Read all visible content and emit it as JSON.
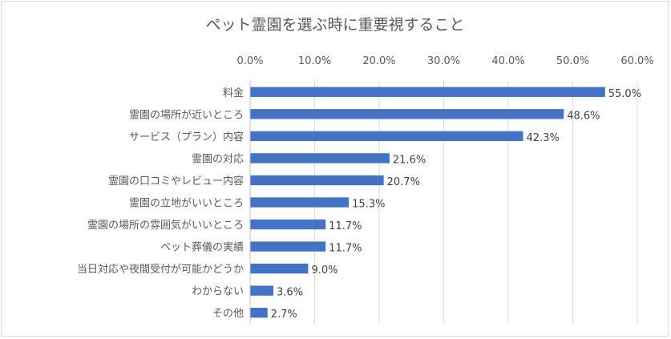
{
  "chart_data": {
    "type": "bar",
    "orientation": "horizontal",
    "title": "ペット霊園を選ぶ時に重要視すること",
    "categories": [
      "料金",
      "霊園の場所が近いところ",
      "サービス（プラン）内容",
      "霊園の対応",
      "霊園の口コミやレビュー内容",
      "霊園の立地がいいところ",
      "霊園の場所の雰囲気がいいところ",
      "ペット葬儀の実績",
      "当日対応や夜間受付が可能かどうか",
      "わからない",
      "その他"
    ],
    "values": [
      55.0,
      48.6,
      42.3,
      21.6,
      20.7,
      15.3,
      11.7,
      11.7,
      9.0,
      3.6,
      2.7
    ],
    "value_labels": [
      "55.0%",
      "48.6%",
      "42.3%",
      "21.6%",
      "20.7%",
      "15.3%",
      "11.7%",
      "11.7%",
      "9.0%",
      "3.6%",
      "2.7%"
    ],
    "xlim": [
      0,
      60
    ],
    "xticks": [
      "0.0%",
      "10.0%",
      "20.0%",
      "30.0%",
      "40.0%",
      "50.0%",
      "60.0%"
    ],
    "xtick_values": [
      0,
      10,
      20,
      30,
      40,
      50,
      60
    ],
    "axis_position": "top",
    "grid": true,
    "legend": "none",
    "bar_color": "#4472c4"
  }
}
